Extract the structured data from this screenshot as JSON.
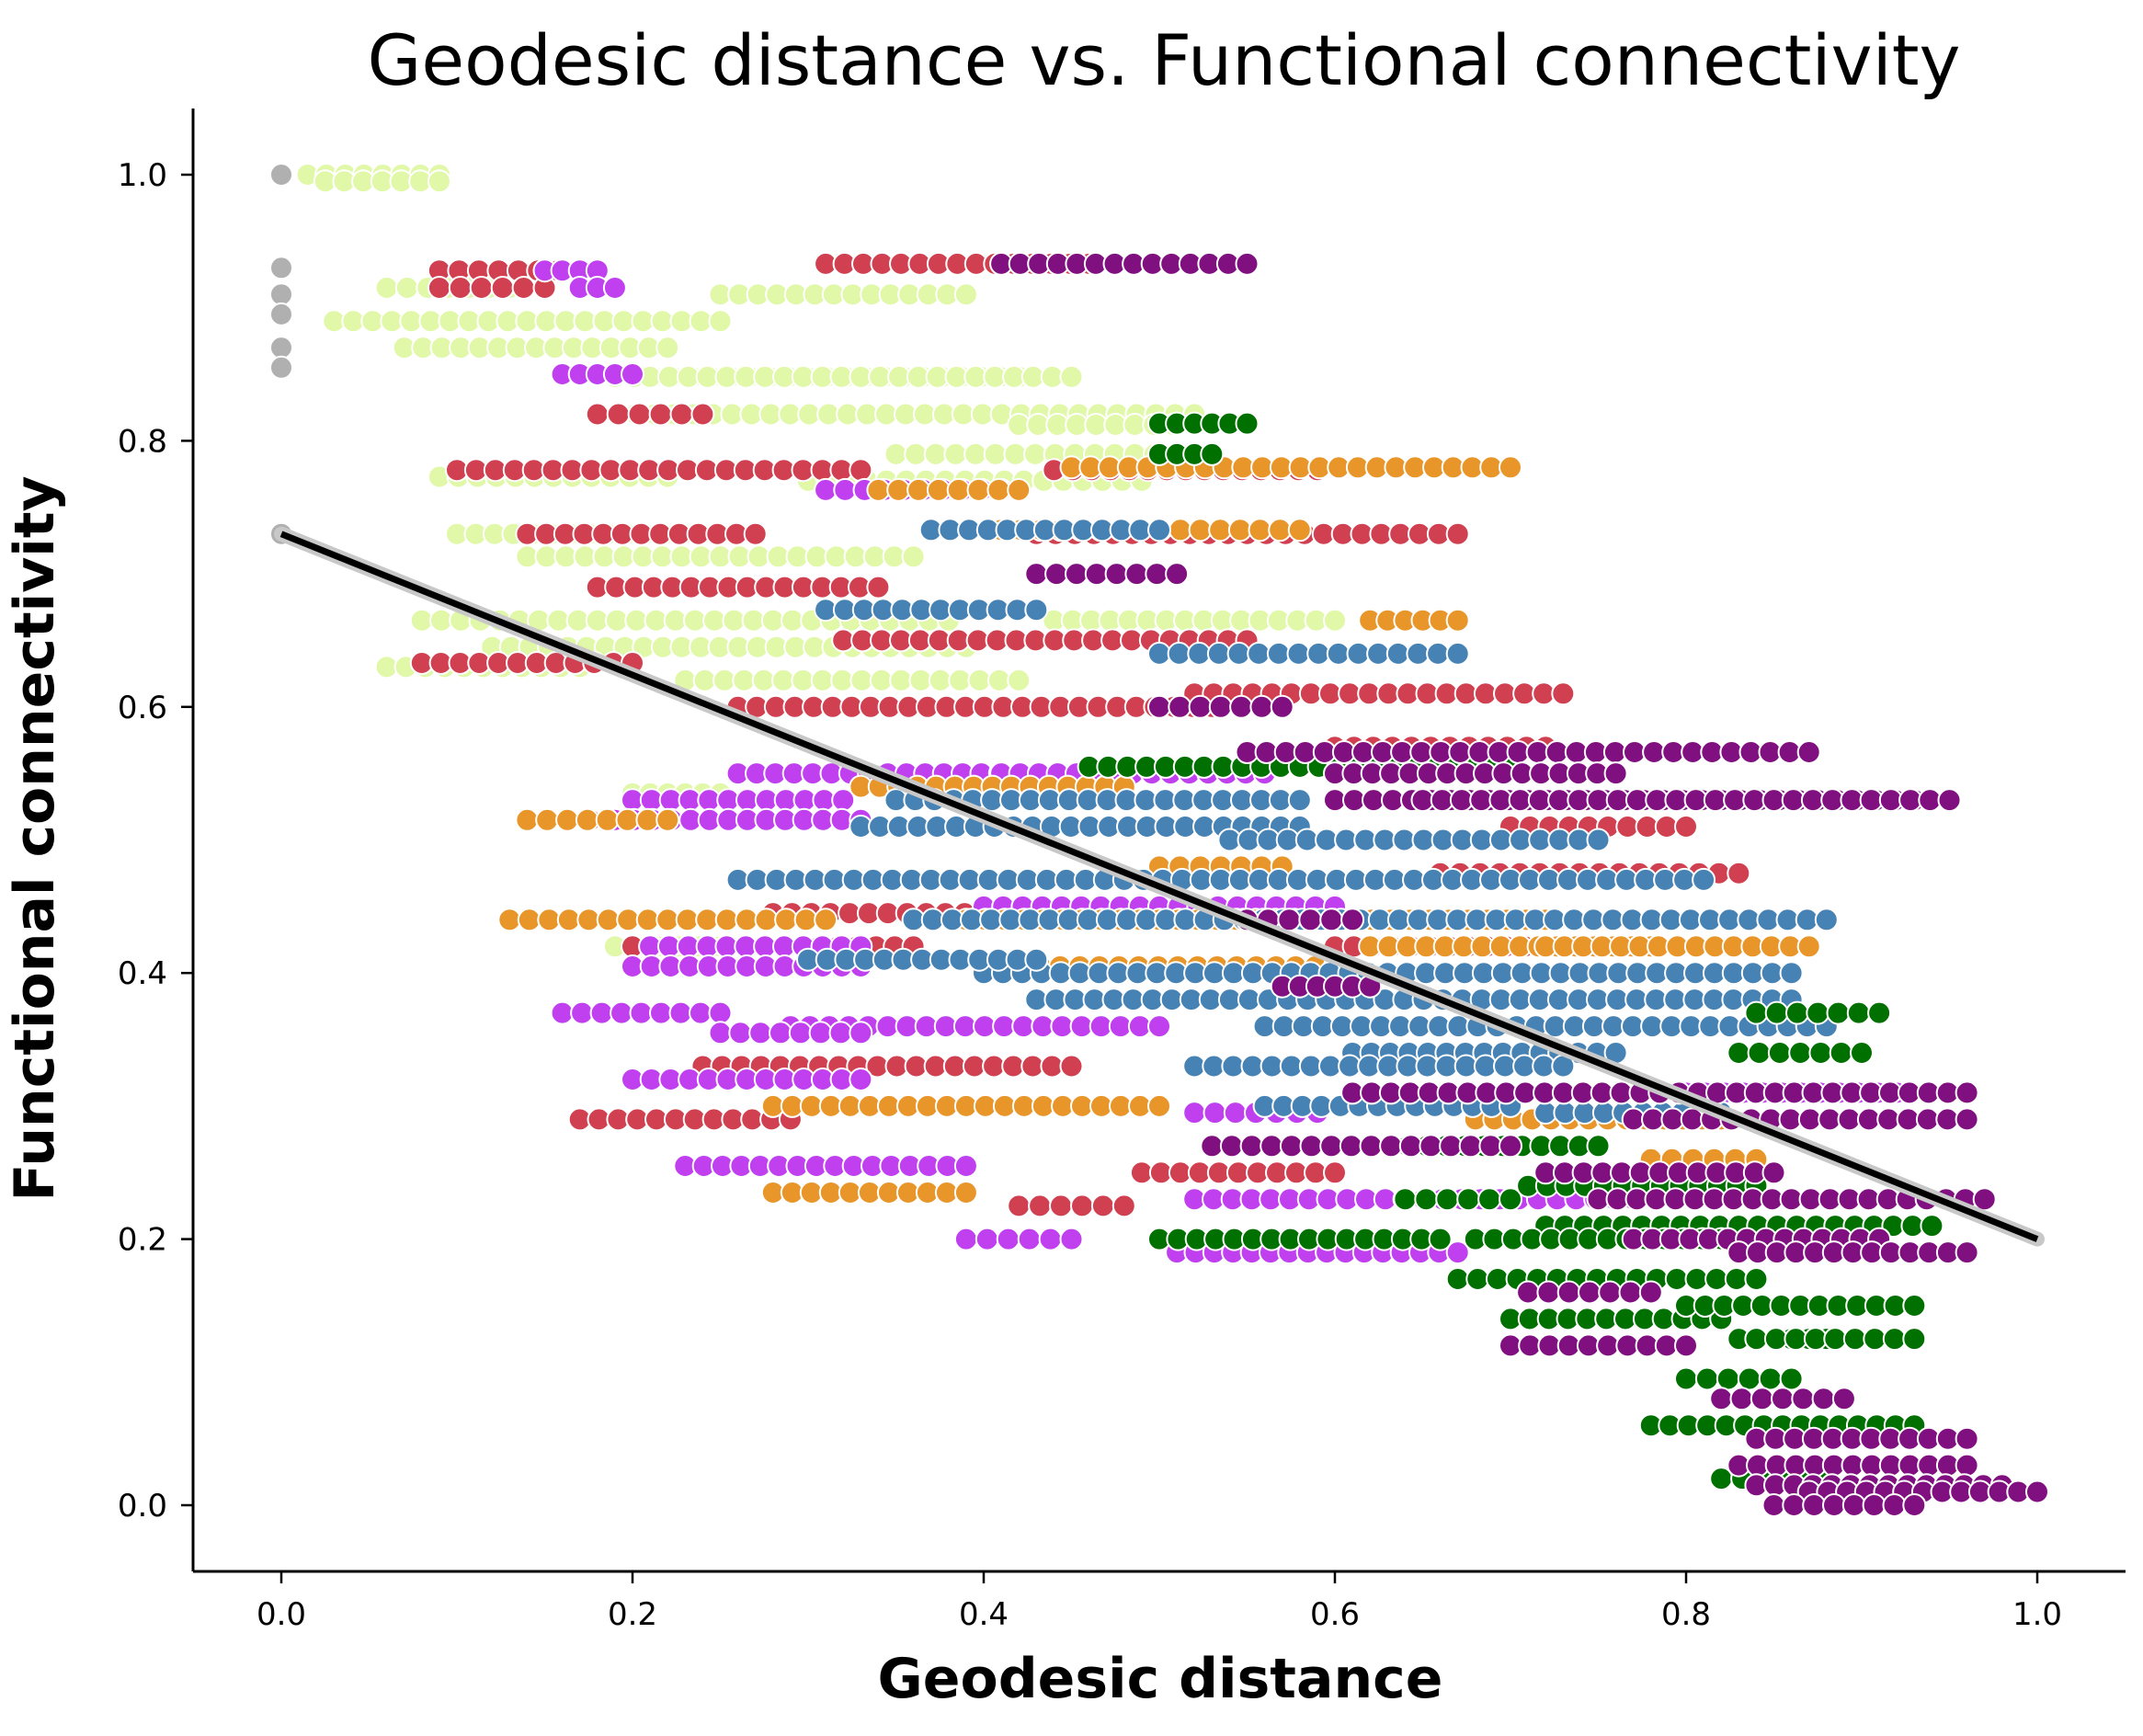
{
  "chart_data": {
    "type": "scatter",
    "title": "Geodesic distance vs. Functional connectivity",
    "xlabel": "Geodesic distance",
    "ylabel": "Functional connectivity",
    "xlim": [
      -0.05,
      1.05
    ],
    "ylim": [
      -0.05,
      1.05
    ],
    "xticks": [
      "0.0",
      "0.2",
      "0.4",
      "0.6",
      "0.8",
      "1.0"
    ],
    "yticks": [
      "0.0",
      "0.2",
      "0.4",
      "0.6",
      "0.8",
      "1.0"
    ],
    "grid": false,
    "legend": "none",
    "colors": {
      "gray": "#b0b0b0",
      "light_green": "#e0f8a8",
      "red": "#d04050",
      "magenta": "#c040f0",
      "orange": "#e8962a",
      "blue": "#4682b4",
      "dark_green": "#007000",
      "purple": "#801080",
      "regression_line": "#000000"
    },
    "point_groups": [
      {
        "color_key": "gray",
        "bands": [
          [
            0.0,
            0.0,
            1.0
          ],
          [
            0.0,
            0.0,
            0.93
          ],
          [
            0.0,
            0.0,
            0.91
          ],
          [
            0.0,
            0.0,
            0.895
          ],
          [
            0.0,
            0.0,
            0.87
          ],
          [
            0.0,
            0.0,
            0.855
          ],
          [
            0.0,
            0.0,
            0.73
          ]
        ]
      },
      {
        "color_key": "light_green",
        "bands": [
          [
            0.015,
            0.09,
            1.0
          ],
          [
            0.025,
            0.09,
            0.995
          ],
          [
            0.06,
            0.13,
            0.915
          ],
          [
            0.03,
            0.25,
            0.89
          ],
          [
            0.07,
            0.22,
            0.87
          ],
          [
            0.25,
            0.39,
            0.91
          ],
          [
            0.19,
            0.42,
            0.848
          ],
          [
            0.21,
            0.45,
            0.848
          ],
          [
            0.18,
            0.52,
            0.82
          ],
          [
            0.42,
            0.53,
            0.812
          ],
          [
            0.35,
            0.52,
            0.79
          ],
          [
            0.3,
            0.49,
            0.77
          ],
          [
            0.09,
            0.22,
            0.773
          ],
          [
            0.1,
            0.25,
            0.73
          ],
          [
            0.14,
            0.36,
            0.713
          ],
          [
            0.08,
            0.38,
            0.665
          ],
          [
            0.06,
            0.17,
            0.63
          ],
          [
            0.12,
            0.39,
            0.645
          ],
          [
            0.23,
            0.42,
            0.62
          ],
          [
            0.44,
            0.6,
            0.665
          ],
          [
            0.2,
            0.25,
            0.535
          ],
          [
            0.19,
            0.25,
            0.42
          ]
        ]
      },
      {
        "color_key": "red",
        "bands": [
          [
            0.09,
            0.18,
            0.928
          ],
          [
            0.09,
            0.15,
            0.915
          ],
          [
            0.31,
            0.46,
            0.933
          ],
          [
            0.18,
            0.24,
            0.82
          ],
          [
            0.1,
            0.33,
            0.778
          ],
          [
            0.44,
            0.59,
            0.778
          ],
          [
            0.14,
            0.27,
            0.73
          ],
          [
            0.43,
            0.67,
            0.73
          ],
          [
            0.18,
            0.34,
            0.69
          ],
          [
            0.08,
            0.2,
            0.633
          ],
          [
            0.32,
            0.55,
            0.65
          ],
          [
            0.26,
            0.53,
            0.6
          ],
          [
            0.52,
            0.73,
            0.61
          ],
          [
            0.6,
            0.72,
            0.57
          ],
          [
            0.66,
            0.83,
            0.475
          ],
          [
            0.14,
            0.2,
            0.515
          ],
          [
            0.28,
            0.52,
            0.445
          ],
          [
            0.2,
            0.36,
            0.42
          ],
          [
            0.6,
            0.87,
            0.42
          ],
          [
            0.24,
            0.45,
            0.33
          ],
          [
            0.17,
            0.29,
            0.29
          ],
          [
            0.49,
            0.6,
            0.25
          ],
          [
            0.42,
            0.48,
            0.225
          ],
          [
            0.7,
            0.8,
            0.51
          ]
        ]
      },
      {
        "color_key": "magenta",
        "bands": [
          [
            0.15,
            0.18,
            0.928
          ],
          [
            0.17,
            0.19,
            0.915
          ],
          [
            0.16,
            0.2,
            0.85
          ],
          [
            0.31,
            0.41,
            0.763
          ],
          [
            0.26,
            0.42,
            0.55
          ],
          [
            0.2,
            0.32,
            0.53
          ],
          [
            0.19,
            0.33,
            0.515
          ],
          [
            0.21,
            0.33,
            0.42
          ],
          [
            0.2,
            0.33,
            0.405
          ],
          [
            0.16,
            0.25,
            0.37
          ],
          [
            0.29,
            0.5,
            0.36
          ],
          [
            0.25,
            0.33,
            0.355
          ],
          [
            0.2,
            0.33,
            0.32
          ],
          [
            0.23,
            0.39,
            0.255
          ],
          [
            0.39,
            0.45,
            0.2
          ],
          [
            0.51,
            0.67,
            0.19
          ],
          [
            0.52,
            0.77,
            0.23
          ],
          [
            0.4,
            0.6,
            0.45
          ],
          [
            0.41,
            0.56,
            0.55
          ],
          [
            0.8,
            0.92,
            0.31
          ],
          [
            0.52,
            0.59,
            0.295
          ]
        ]
      },
      {
        "color_key": "orange",
        "bands": [
          [
            0.34,
            0.42,
            0.763
          ],
          [
            0.45,
            0.7,
            0.78
          ],
          [
            0.41,
            0.58,
            0.733
          ],
          [
            0.62,
            0.67,
            0.665
          ],
          [
            0.33,
            0.48,
            0.54
          ],
          [
            0.14,
            0.22,
            0.515
          ],
          [
            0.13,
            0.31,
            0.44
          ],
          [
            0.39,
            0.72,
            0.44
          ],
          [
            0.28,
            0.5,
            0.3
          ],
          [
            0.28,
            0.39,
            0.235
          ],
          [
            0.41,
            0.6,
            0.405
          ],
          [
            0.62,
            0.78,
            0.42
          ],
          [
            0.72,
            0.87,
            0.42
          ],
          [
            0.68,
            0.82,
            0.29
          ],
          [
            0.78,
            0.84,
            0.26
          ],
          [
            0.5,
            0.57,
            0.48
          ]
        ]
      },
      {
        "color_key": "blue",
        "bands": [
          [
            0.37,
            0.5,
            0.733
          ],
          [
            0.31,
            0.43,
            0.673
          ],
          [
            0.35,
            0.58,
            0.53
          ],
          [
            0.33,
            0.58,
            0.51
          ],
          [
            0.26,
            0.81,
            0.47
          ],
          [
            0.36,
            0.88,
            0.44
          ],
          [
            0.4,
            0.86,
            0.4
          ],
          [
            0.43,
            0.86,
            0.38
          ],
          [
            0.56,
            0.88,
            0.36
          ],
          [
            0.61,
            0.76,
            0.34
          ],
          [
            0.52,
            0.73,
            0.33
          ],
          [
            0.56,
            0.7,
            0.3
          ],
          [
            0.72,
            0.82,
            0.295
          ],
          [
            0.3,
            0.43,
            0.41
          ],
          [
            0.5,
            0.67,
            0.64
          ],
          [
            0.54,
            0.75,
            0.5
          ]
        ]
      },
      {
        "color_key": "dark_green",
        "bands": [
          [
            0.5,
            0.55,
            0.813
          ],
          [
            0.5,
            0.53,
            0.79
          ],
          [
            0.46,
            0.7,
            0.555
          ],
          [
            0.62,
            0.75,
            0.27
          ],
          [
            0.5,
            0.66,
            0.2
          ],
          [
            0.64,
            0.7,
            0.23
          ],
          [
            0.71,
            0.84,
            0.24
          ],
          [
            0.72,
            0.94,
            0.21
          ],
          [
            0.68,
            0.82,
            0.2
          ],
          [
            0.67,
            0.84,
            0.17
          ],
          [
            0.7,
            0.82,
            0.14
          ],
          [
            0.8,
            0.93,
            0.15
          ],
          [
            0.83,
            0.88,
            0.125
          ],
          [
            0.84,
            0.93,
            0.125
          ],
          [
            0.8,
            0.86,
            0.095
          ],
          [
            0.78,
            0.93,
            0.06
          ],
          [
            0.82,
            0.88,
            0.02
          ],
          [
            0.83,
            0.9,
            0.34
          ],
          [
            0.84,
            0.91,
            0.37
          ]
        ]
      },
      {
        "color_key": "purple",
        "bands": [
          [
            0.41,
            0.55,
            0.933
          ],
          [
            0.43,
            0.51,
            0.7
          ],
          [
            0.5,
            0.57,
            0.6
          ],
          [
            0.55,
            0.87,
            0.566
          ],
          [
            0.6,
            0.93,
            0.53
          ],
          [
            0.65,
            0.95,
            0.53
          ],
          [
            0.6,
            0.76,
            0.55
          ],
          [
            0.53,
            0.7,
            0.27
          ],
          [
            0.61,
            0.96,
            0.31
          ],
          [
            0.77,
            0.96,
            0.29
          ],
          [
            0.72,
            0.85,
            0.25
          ],
          [
            0.75,
            0.97,
            0.23
          ],
          [
            0.77,
            0.91,
            0.2
          ],
          [
            0.83,
            0.96,
            0.19
          ],
          [
            0.71,
            0.78,
            0.16
          ],
          [
            0.7,
            0.8,
            0.12
          ],
          [
            0.82,
            0.89,
            0.08
          ],
          [
            0.84,
            0.96,
            0.05
          ],
          [
            0.83,
            0.96,
            0.03
          ],
          [
            0.84,
            0.98,
            0.015
          ],
          [
            0.87,
            1.0,
            0.01
          ],
          [
            0.85,
            0.93,
            0.0
          ],
          [
            0.55,
            0.61,
            0.44
          ],
          [
            0.57,
            0.62,
            0.39
          ]
        ]
      }
    ],
    "regression_line": {
      "x": [
        0.0,
        1.0
      ],
      "y": [
        0.73,
        0.2
      ]
    }
  }
}
